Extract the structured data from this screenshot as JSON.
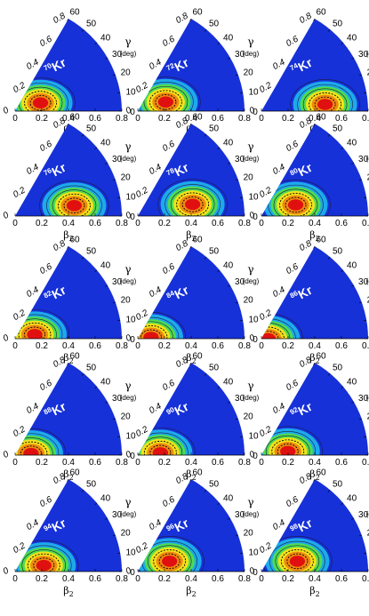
{
  "chart_data": {
    "type": "heatmap",
    "geometry": "polar-sextant",
    "colors": {
      "low": "#1631d8",
      "mid_low": "#1ec0ee",
      "mid": "#4fdc4f",
      "mid_high": "#f3e21b",
      "high": "#f08a10",
      "max": "#e01010"
    },
    "beta2_ticks": [
      "0",
      "0.2",
      "0.4",
      "0.6",
      "0.8"
    ],
    "gamma_ticks": [
      "0",
      "10",
      "20",
      "30",
      "40",
      "50",
      "60"
    ],
    "gamma_unit": "(deg)",
    "panels": [
      {
        "label": "70Kr",
        "mass": "70",
        "element": "Kr",
        "min_beta": 0.2,
        "min_gamma": 18
      },
      {
        "label": "72Kr",
        "mass": "72",
        "element": "Kr",
        "min_beta": 0.22,
        "min_gamma": 18
      },
      {
        "label": "74Kr",
        "mass": "74",
        "element": "Kr",
        "min_beta": 0.48,
        "min_gamma": 6
      },
      {
        "label": "76Kr",
        "mass": "76",
        "element": "Kr",
        "min_beta": 0.45,
        "min_gamma": 10
      },
      {
        "label": "78Kr",
        "mass": "78",
        "element": "Kr",
        "min_beta": 0.42,
        "min_gamma": 12
      },
      {
        "label": "80Kr",
        "mass": "80",
        "element": "Kr",
        "min_beta": 0.27,
        "min_gamma": 18
      },
      {
        "label": "82Kr",
        "mass": "82",
        "element": "Kr",
        "min_beta": 0.15,
        "min_gamma": 12
      },
      {
        "label": "84Kr",
        "mass": "84",
        "element": "Kr",
        "min_beta": 0.1,
        "min_gamma": 6
      },
      {
        "label": "86Kr",
        "mass": "86",
        "element": "Kr",
        "min_beta": 0.05,
        "min_gamma": 0
      },
      {
        "label": "88Kr",
        "mass": "88",
        "element": "Kr",
        "min_beta": 0.12,
        "min_gamma": 6
      },
      {
        "label": "90Kr",
        "mass": "90",
        "element": "Kr",
        "min_beta": 0.17,
        "min_gamma": 6
      },
      {
        "label": "92Kr",
        "mass": "92",
        "element": "Kr",
        "min_beta": 0.2,
        "min_gamma": 8
      },
      {
        "label": "94Kr",
        "mass": "94",
        "element": "Kr",
        "min_beta": 0.22,
        "min_gamma": 12
      },
      {
        "label": "96Kr",
        "mass": "96",
        "element": "Kr",
        "min_beta": 0.25,
        "min_gamma": 18
      },
      {
        "label": "98Kr",
        "mass": "98",
        "element": "Kr",
        "min_beta": 0.28,
        "min_gamma": 16
      }
    ]
  }
}
